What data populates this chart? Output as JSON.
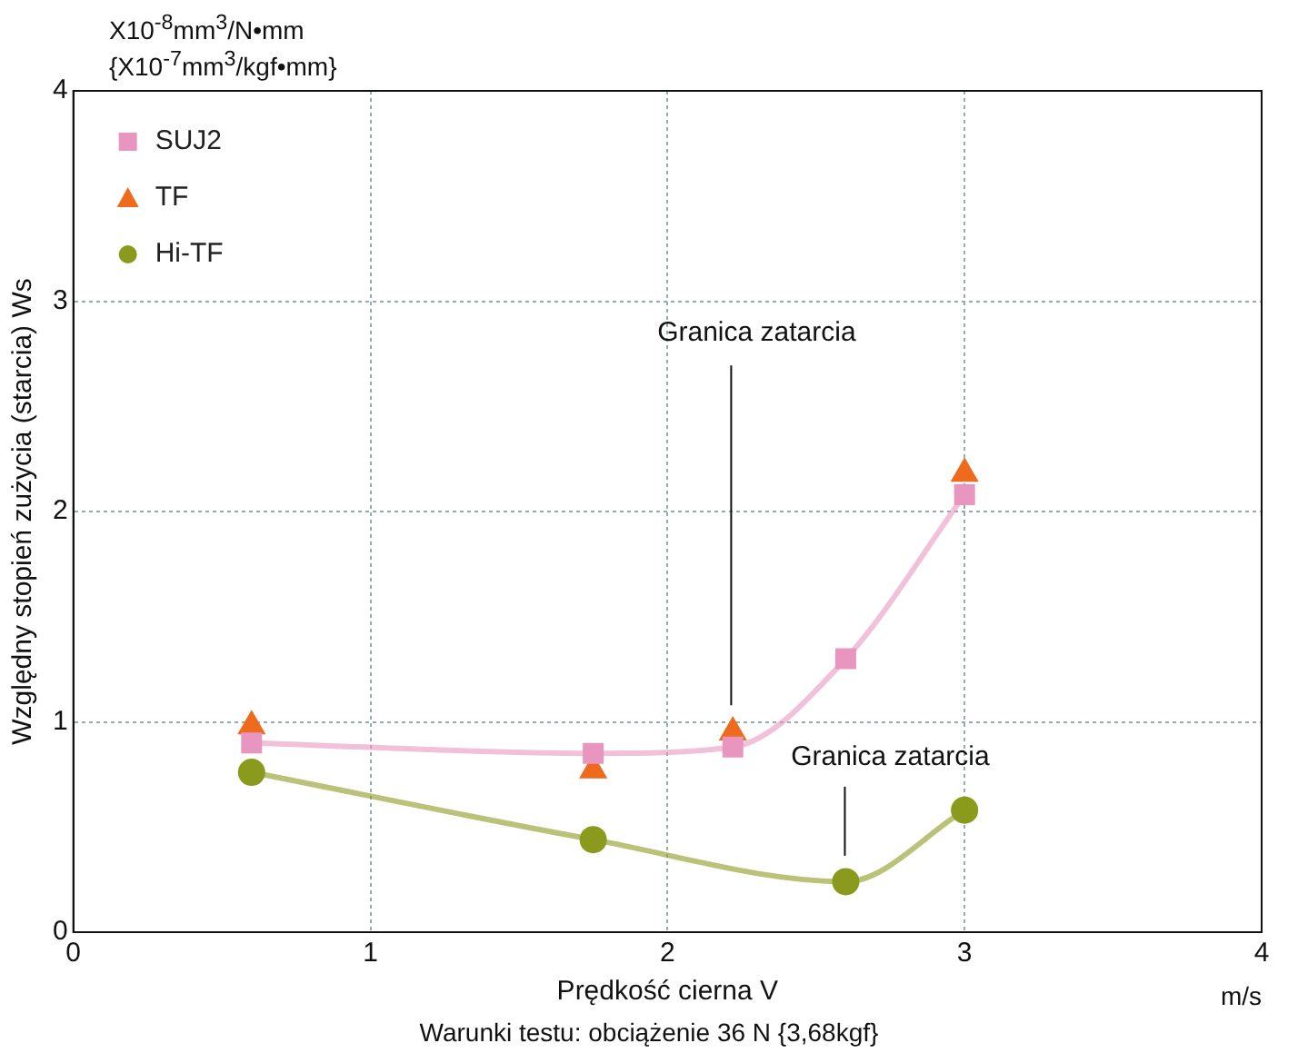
{
  "chart_data": {
    "type": "line",
    "ylabel": "Względny stopień zużycia (starcia) Ws",
    "xlabel": "Prędkość cierna V",
    "annotations": [
      "X10$^{-8}$mm$^{3}$/N•mm",
      "{X10$^{-7}$mm$^{3}$/kgf•mm}",
      "m/s",
      "Warunki testu: obciążenie 36 N {3,68kgf}",
      "Granica zatarcia",
      "Granica zatarcia"
    ],
    "series": [
      {
        "name": "SUJ2",
        "type": "line",
        "color": "#e896c0",
        "marker": "square",
        "x": [
          0.6,
          1.75,
          2.22,
          2.6,
          3.0
        ],
        "values": [
          0.9,
          0.85,
          0.88,
          1.3,
          2.08
        ]
      },
      {
        "name": "TF",
        "type": "scatter",
        "color": "#ee6a1c",
        "marker": "triangle",
        "x": [
          0.6,
          1.75,
          2.22,
          3.0
        ],
        "values": [
          0.98,
          0.77,
          0.95,
          2.18
        ]
      },
      {
        "name": "Hi-TF",
        "type": "line",
        "color": "#8a9a1c",
        "marker": "circle",
        "x": [
          0.6,
          1.75,
          2.6,
          3.0
        ],
        "values": [
          0.76,
          0.44,
          0.24,
          0.58
        ]
      }
    ],
    "xlim": [
      0,
      4
    ],
    "xticks": [
      0,
      1,
      2,
      3,
      4
    ],
    "ylim": [
      0,
      4
    ],
    "yticks": [
      0,
      1,
      2,
      3,
      4
    ],
    "grid": true,
    "legend": "top left"
  }
}
